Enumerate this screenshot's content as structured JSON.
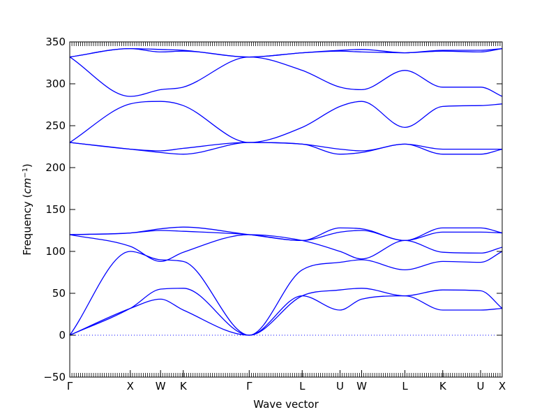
{
  "chart_data": {
    "type": "line",
    "xlabel": "Wave vector",
    "ylabel_text": "Frequency (",
    "ylabel_unit": "cm",
    "ylabel_exp": "−1",
    "ylabel_close": ")",
    "ylim": [
      -50,
      350
    ],
    "xlim": [
      0,
      20
    ],
    "yticks": [
      -50,
      0,
      50,
      100,
      150,
      200,
      250,
      300,
      350
    ],
    "ytick_labels": [
      "−50",
      "0",
      "50",
      "100",
      "150",
      "200",
      "250",
      "300",
      "350"
    ],
    "kpoints": [
      {
        "label": "Γ",
        "x": 0
      },
      {
        "label": "X",
        "x": 2.8
      },
      {
        "label": "W",
        "x": 4.2
      },
      {
        "label": "K",
        "x": 5.25
      },
      {
        "label": "Γ",
        "x": 8.3
      },
      {
        "label": "L",
        "x": 10.75
      },
      {
        "label": "U",
        "x": 12.5
      },
      {
        "label": "W",
        "x": 13.5
      },
      {
        "label": "L",
        "x": 15.5
      },
      {
        "label": "K",
        "x": 17.25
      },
      {
        "label": "U",
        "x": 19.0
      },
      {
        "label": "X",
        "x": 20.0
      }
    ],
    "zero_line": {
      "y": 0,
      "style": "dotted",
      "color": "#0000ff"
    },
    "line_color": "#0000ff",
    "series": [
      {
        "x": [
          0,
          2.8,
          4.2,
          5.25,
          8.3,
          10.75,
          12.5,
          13.5,
          15.5,
          17.25,
          19.0,
          20.0
        ],
        "y": [
          0,
          32,
          43,
          30,
          0,
          47,
          30,
          43,
          47,
          30,
          30,
          32
        ]
      },
      {
        "x": [
          0,
          2.8,
          4.2,
          5.25,
          8.3,
          10.75,
          12.5,
          13.5,
          15.5,
          17.25,
          19.0,
          20.0
        ],
        "y": [
          0,
          32,
          55,
          56,
          0,
          47,
          54,
          56,
          47,
          54,
          53,
          32
        ]
      },
      {
        "x": [
          0,
          2.8,
          4.2,
          5.25,
          8.3,
          10.75,
          12.5,
          13.5,
          15.5,
          17.25,
          19.0,
          20.0
        ],
        "y": [
          0,
          100,
          90,
          88,
          0,
          78,
          87,
          90,
          78,
          88,
          87,
          100
        ]
      },
      {
        "x": [
          0,
          2.8,
          4.2,
          5.25,
          8.3,
          10.75,
          12.5,
          13.5,
          15.5,
          17.25,
          19.0,
          20.0
        ],
        "y": [
          120,
          106,
          88,
          99,
          120,
          113,
          100,
          91,
          113,
          99,
          98,
          105
        ]
      },
      {
        "x": [
          0,
          2.8,
          4.2,
          5.25,
          8.3,
          10.75,
          12.5,
          13.5,
          15.5,
          17.25,
          19.0,
          20.0
        ],
        "y": [
          120,
          122,
          125,
          124,
          120,
          113,
          123,
          125,
          113,
          123,
          123,
          122
        ]
      },
      {
        "x": [
          0,
          2.8,
          4.2,
          5.25,
          8.3,
          10.75,
          12.5,
          13.5,
          15.5,
          17.25,
          19.0,
          20.0
        ],
        "y": [
          120,
          122,
          127,
          129,
          120,
          113,
          128,
          127,
          113,
          128,
          128,
          122
        ]
      },
      {
        "x": [
          0,
          2.8,
          4.2,
          5.25,
          8.3,
          10.75,
          12.5,
          13.5,
          15.5,
          17.25,
          19.0,
          20.0
        ],
        "y": [
          230,
          222,
          218,
          216,
          230,
          228,
          216,
          218,
          228,
          216,
          216,
          222
        ]
      },
      {
        "x": [
          0,
          2.8,
          4.2,
          5.25,
          8.3,
          10.75,
          12.5,
          13.5,
          15.5,
          17.25,
          19.0,
          20.0
        ],
        "y": [
          230,
          222,
          220,
          223,
          230,
          228,
          222,
          220,
          228,
          222,
          222,
          222
        ]
      },
      {
        "x": [
          0,
          2.8,
          4.2,
          5.25,
          8.3,
          10.75,
          12.5,
          13.5,
          15.5,
          17.25,
          19.0,
          20.0
        ],
        "y": [
          230,
          276,
          279,
          274,
          230,
          248,
          273,
          279,
          248,
          273,
          274,
          276
        ]
      },
      {
        "x": [
          0,
          2.8,
          4.2,
          5.25,
          8.3,
          10.75,
          12.5,
          13.5,
          15.5,
          17.25,
          19.0,
          20.0
        ],
        "y": [
          332,
          285,
          293,
          296,
          332,
          316,
          296,
          293,
          316,
          296,
          296,
          285
        ]
      },
      {
        "x": [
          0,
          2.8,
          4.2,
          5.25,
          8.3,
          10.75,
          12.5,
          13.5,
          15.5,
          17.25,
          19.0,
          20.0
        ],
        "y": [
          332,
          342,
          338,
          339,
          332,
          337,
          339,
          338,
          337,
          339,
          338,
          342
        ]
      },
      {
        "x": [
          0,
          2.8,
          4.2,
          5.25,
          8.3,
          10.75,
          12.5,
          13.5,
          15.5,
          17.25,
          19.0,
          20.0
        ],
        "y": [
          332,
          342,
          341,
          340,
          332,
          337,
          340,
          341,
          337,
          340,
          340,
          342
        ]
      }
    ]
  }
}
